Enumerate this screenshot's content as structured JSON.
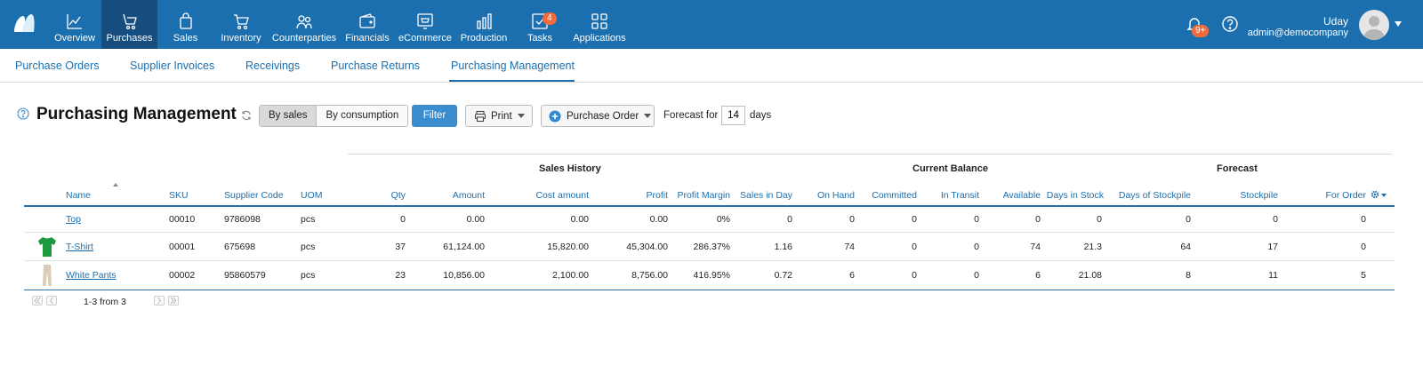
{
  "nav": {
    "items": [
      {
        "label": "Overview",
        "icon": "chart-line-icon"
      },
      {
        "label": "Purchases",
        "icon": "cart-hand-icon",
        "active": true
      },
      {
        "label": "Sales",
        "icon": "shopping-bag-icon"
      },
      {
        "label": "Inventory",
        "icon": "shopping-cart-icon"
      },
      {
        "label": "Counterparties",
        "icon": "people-icon"
      },
      {
        "label": "Financials",
        "icon": "wallet-icon"
      },
      {
        "label": "eCommerce",
        "icon": "storefront-icon"
      },
      {
        "label": "Production",
        "icon": "bar-chart-icon"
      },
      {
        "label": "Tasks",
        "icon": "checkbox-icon",
        "badge": "4"
      },
      {
        "label": "Applications",
        "icon": "apps-grid-icon"
      }
    ],
    "notifications_badge": "9+",
    "user_name": "Uday",
    "user_email": "admin@democompany"
  },
  "subnav": {
    "items": [
      "Purchase Orders",
      "Supplier Invoices",
      "Receivings",
      "Purchase Returns",
      "Purchasing Management"
    ],
    "active": "Purchasing Management"
  },
  "toolbar": {
    "title": "Purchasing Management",
    "by_sales": "By sales",
    "by_consumption": "By consumption",
    "filter": "Filter",
    "print": "Print",
    "purchase_order": "Purchase Order",
    "forecast_for": "Forecast for",
    "forecast_days": "14",
    "days": "days"
  },
  "table": {
    "groups": {
      "sales_history": "Sales History",
      "current_balance": "Current Balance",
      "forecast": "Forecast"
    },
    "columns": {
      "name": "Name",
      "sku": "SKU",
      "supplier_code": "Supplier Code",
      "uom": "UOM",
      "qty": "Qty",
      "amount": "Amount",
      "cost_amount": "Cost amount",
      "profit": "Profit",
      "profit_margin": "Profit Margin",
      "sales_in_day": "Sales in Day",
      "on_hand": "On Hand",
      "committed": "Committed",
      "in_transit": "In Transit",
      "available": "Available",
      "days_in_stock": "Days in Stock",
      "days_of_stockpile": "Days of Stockpile",
      "stockpile": "Stockpile",
      "for_order": "For Order"
    },
    "rows": [
      {
        "name": "Top",
        "sku": "00010",
        "supplier_code": "9786098",
        "uom": "pcs",
        "qty": "0",
        "amount": "0.00",
        "cost_amount": "0.00",
        "profit": "0.00",
        "profit_margin": "0%",
        "sales_in_day": "0",
        "on_hand": "0",
        "committed": "0",
        "in_transit": "0",
        "available": "0",
        "days_in_stock": "0",
        "days_of_stockpile": "0",
        "stockpile": "0",
        "for_order": "0",
        "thumb": "none"
      },
      {
        "name": "T-Shirt",
        "sku": "00001",
        "supplier_code": "675698",
        "uom": "pcs",
        "qty": "37",
        "amount": "61,124.00",
        "cost_amount": "15,820.00",
        "profit": "45,304.00",
        "profit_margin": "286.37%",
        "sales_in_day": "1.16",
        "on_hand": "74",
        "committed": "0",
        "in_transit": "0",
        "available": "74",
        "days_in_stock": "21.3",
        "days_of_stockpile": "64",
        "stockpile": "17",
        "for_order": "0",
        "thumb": "tshirt-thumbnail",
        "thumb_color": "#1e9a3c"
      },
      {
        "name": "White Pants",
        "sku": "00002",
        "supplier_code": "95860579",
        "uom": "pcs",
        "qty": "23",
        "amount": "10,856.00",
        "cost_amount": "2,100.00",
        "profit": "8,756.00",
        "profit_margin": "416.95%",
        "sales_in_day": "0.72",
        "on_hand": "6",
        "committed": "0",
        "in_transit": "0",
        "available": "6",
        "days_in_stock": "21.08",
        "days_of_stockpile": "8",
        "stockpile": "11",
        "for_order": "5",
        "thumb": "pants-thumbnail",
        "thumb_color": "#d9cdb8"
      }
    ]
  },
  "pager": {
    "text": "1-3 from 3"
  },
  "colors": {
    "brand": "#1b6fae",
    "active_nav": "#164e80",
    "badge": "#f06a3a",
    "filter": "#3a8ed0"
  }
}
